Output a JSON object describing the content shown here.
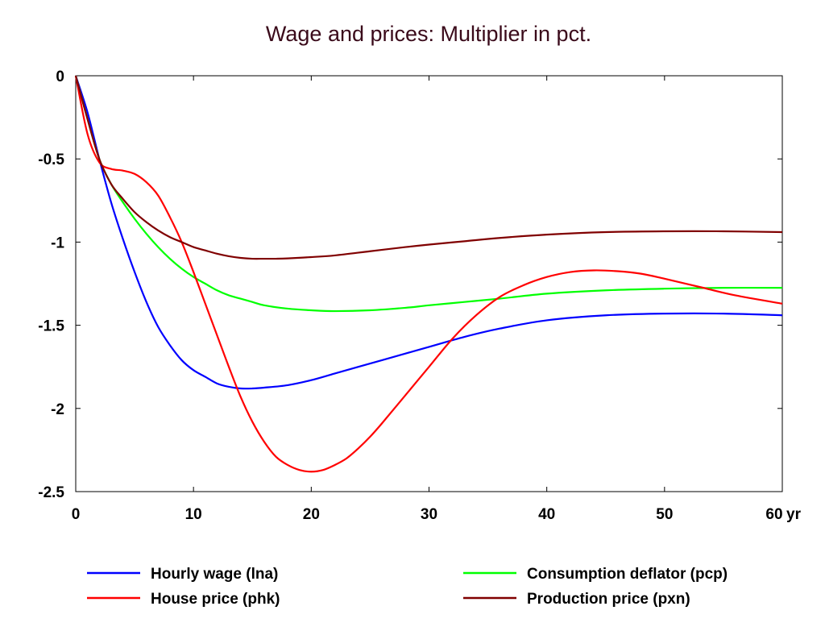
{
  "chart_data": {
    "type": "line",
    "title": "Wage and prices: Multiplier in pct.",
    "x_unit_label": "yr",
    "xlim": [
      0,
      60
    ],
    "ylim": [
      -2.5,
      0
    ],
    "x_ticks": [
      0,
      10,
      20,
      30,
      40,
      50,
      60
    ],
    "y_ticks": [
      0,
      -0.5,
      -1,
      -1.5,
      -2,
      -2.5
    ],
    "y_tick_labels": [
      "0",
      "-0.5",
      "-1",
      "-1.5",
      "-2",
      "-2.5"
    ],
    "grid": false,
    "legend_position": "bottom",
    "series": [
      {
        "name": "Hourly wage (lna)",
        "color": "#0000ff",
        "x": [
          0,
          1,
          2,
          3,
          4,
          5,
          6,
          7,
          8,
          9,
          10,
          11,
          12,
          13,
          14,
          15,
          16,
          18,
          20,
          22,
          25,
          28,
          30,
          33,
          36,
          40,
          45,
          50,
          55,
          60
        ],
        "y": [
          0,
          -0.22,
          -0.5,
          -0.76,
          -0.98,
          -1.18,
          -1.36,
          -1.51,
          -1.62,
          -1.71,
          -1.77,
          -1.81,
          -1.85,
          -1.87,
          -1.88,
          -1.88,
          -1.875,
          -1.86,
          -1.83,
          -1.79,
          -1.73,
          -1.67,
          -1.63,
          -1.57,
          -1.52,
          -1.47,
          -1.44,
          -1.43,
          -1.43,
          -1.44
        ]
      },
      {
        "name": "Consumption deflator (pcp)",
        "color": "#00ff00",
        "x": [
          0,
          1,
          2,
          3,
          4,
          5,
          6,
          7,
          8,
          9,
          10,
          11,
          12,
          13,
          14,
          15,
          16,
          18,
          20,
          22,
          25,
          28,
          30,
          33,
          36,
          40,
          45,
          50,
          55,
          60
        ],
        "y": [
          0,
          -0.26,
          -0.5,
          -0.65,
          -0.76,
          -0.86,
          -0.95,
          -1.03,
          -1.1,
          -1.16,
          -1.21,
          -1.25,
          -1.29,
          -1.32,
          -1.34,
          -1.36,
          -1.38,
          -1.4,
          -1.41,
          -1.415,
          -1.41,
          -1.395,
          -1.38,
          -1.36,
          -1.34,
          -1.31,
          -1.29,
          -1.28,
          -1.275,
          -1.275
        ]
      },
      {
        "name": "House price (phk)",
        "color": "#ff0000",
        "x": [
          0,
          1,
          2,
          3,
          4,
          5,
          6,
          7,
          8,
          9,
          10,
          11,
          12,
          13,
          14,
          15,
          16,
          17,
          18,
          19,
          20,
          21,
          22,
          23,
          24,
          25,
          26,
          28,
          30,
          32,
          34,
          36,
          38,
          40,
          42,
          44,
          46,
          48,
          50,
          53,
          56,
          60
        ],
        "y": [
          0,
          -0.35,
          -0.52,
          -0.56,
          -0.57,
          -0.59,
          -0.64,
          -0.72,
          -0.85,
          -1.0,
          -1.18,
          -1.37,
          -1.56,
          -1.75,
          -1.93,
          -2.08,
          -2.2,
          -2.29,
          -2.34,
          -2.37,
          -2.38,
          -2.37,
          -2.34,
          -2.3,
          -2.24,
          -2.17,
          -2.09,
          -1.92,
          -1.75,
          -1.58,
          -1.44,
          -1.33,
          -1.26,
          -1.21,
          -1.18,
          -1.17,
          -1.175,
          -1.19,
          -1.22,
          -1.27,
          -1.32,
          -1.37
        ]
      },
      {
        "name": "Production price (pxn)",
        "color": "#800000",
        "x": [
          0,
          1,
          2,
          3,
          4,
          5,
          6,
          7,
          8,
          9,
          10,
          11,
          12,
          13,
          14,
          15,
          16,
          17,
          18,
          20,
          22,
          25,
          28,
          30,
          33,
          36,
          40,
          45,
          50,
          55,
          60
        ],
        "y": [
          0,
          -0.26,
          -0.5,
          -0.65,
          -0.74,
          -0.82,
          -0.88,
          -0.93,
          -0.97,
          -1.0,
          -1.03,
          -1.05,
          -1.07,
          -1.085,
          -1.095,
          -1.1,
          -1.1,
          -1.1,
          -1.098,
          -1.09,
          -1.08,
          -1.055,
          -1.03,
          -1.015,
          -0.995,
          -0.975,
          -0.955,
          -0.94,
          -0.935,
          -0.935,
          -0.94
        ]
      }
    ],
    "legend": [
      {
        "series_index": 0,
        "column": "left",
        "row": 0
      },
      {
        "series_index": 2,
        "column": "left",
        "row": 1
      },
      {
        "series_index": 1,
        "column": "right",
        "row": 0
      },
      {
        "series_index": 3,
        "column": "right",
        "row": 1
      }
    ]
  }
}
